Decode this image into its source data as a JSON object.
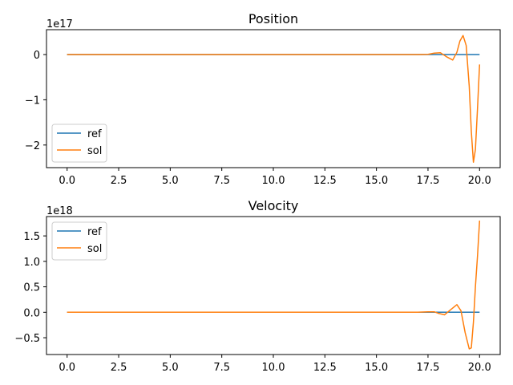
{
  "colors": {
    "ref": "#1f77b4",
    "sol": "#ff7f0e"
  },
  "chart_data": [
    {
      "type": "line",
      "title": "Position",
      "offset_text": "1e17",
      "xlim": [
        -1,
        21
      ],
      "ylim": [
        -2.5,
        0.55
      ],
      "xticks": [
        0,
        2.5,
        5,
        7.5,
        10,
        12.5,
        15,
        17.5,
        20
      ],
      "xtick_labels": [
        "0.0",
        "2.5",
        "5.0",
        "7.5",
        "10.0",
        "12.5",
        "15.0",
        "17.5",
        "20.0"
      ],
      "yticks": [
        0,
        -1,
        -2
      ],
      "ytick_labels": [
        "0",
        "−1",
        "−2"
      ],
      "legend": {
        "placement": "lower-left",
        "entries": [
          "ref",
          "sol"
        ]
      },
      "series": [
        {
          "name": "ref",
          "x": [
            0,
            20
          ],
          "y": [
            0,
            0
          ]
        },
        {
          "name": "sol",
          "x": [
            0,
            17.0,
            17.5,
            17.8,
            18.1,
            18.4,
            18.7,
            18.9,
            19.05,
            19.2,
            19.35,
            19.5,
            19.6,
            19.7,
            19.8,
            19.9,
            20.0
          ],
          "y": [
            0,
            0,
            0.005,
            0.03,
            0.04,
            -0.05,
            -0.12,
            0.05,
            0.3,
            0.42,
            0.2,
            -0.7,
            -1.7,
            -2.38,
            -2.1,
            -1.2,
            -0.22
          ]
        }
      ]
    },
    {
      "type": "line",
      "title": "Velocity",
      "offset_text": "1e18",
      "xlim": [
        -1,
        21
      ],
      "ylim": [
        -0.83,
        1.88
      ],
      "xticks": [
        0,
        2.5,
        5,
        7.5,
        10,
        12.5,
        15,
        17.5,
        20
      ],
      "xtick_labels": [
        "0.0",
        "2.5",
        "5.0",
        "7.5",
        "10.0",
        "12.5",
        "15.0",
        "17.5",
        "20.0"
      ],
      "yticks": [
        1.5,
        1.0,
        0.5,
        0.0,
        -0.5
      ],
      "ytick_labels": [
        "1.5",
        "1.0",
        "0.5",
        "0.0",
        "−0.5"
      ],
      "legend": {
        "placement": "upper-left",
        "entries": [
          "ref",
          "sol"
        ]
      },
      "series": [
        {
          "name": "ref",
          "x": [
            0,
            20
          ],
          "y": [
            0,
            0
          ]
        },
        {
          "name": "sol",
          "x": [
            0,
            17.0,
            17.5,
            17.8,
            18.0,
            18.3,
            18.6,
            18.9,
            19.1,
            19.3,
            19.5,
            19.6,
            19.7,
            19.8,
            19.9,
            20.0
          ],
          "y": [
            0,
            0,
            0.01,
            0.01,
            -0.02,
            -0.05,
            0.05,
            0.15,
            0.03,
            -0.4,
            -0.72,
            -0.7,
            -0.2,
            0.5,
            1.1,
            1.8
          ]
        }
      ]
    }
  ]
}
